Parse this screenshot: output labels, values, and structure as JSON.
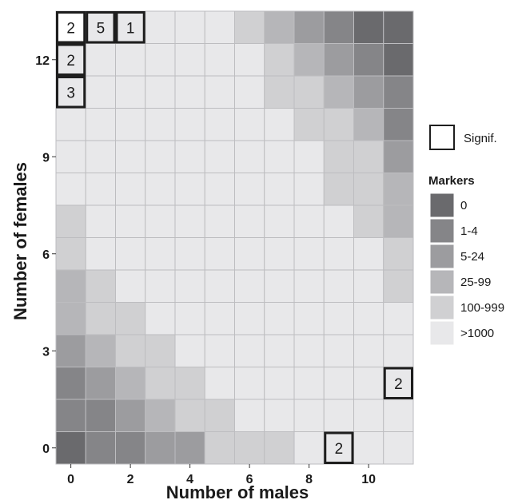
{
  "chart_data": {
    "type": "heatmap",
    "xlabel": "Number of males",
    "ylabel": "Number of females",
    "x_ticks": [
      0,
      2,
      4,
      6,
      8,
      10
    ],
    "y_ticks": [
      0,
      3,
      6,
      9,
      12
    ],
    "x_range": [
      0,
      11
    ],
    "y_range": [
      0,
      13
    ],
    "categories": [
      "0",
      "1-4",
      "5-24",
      "25-99",
      "100-999",
      ">1000"
    ],
    "colors": {
      "blank": "#ffffff",
      "0": "#6a6a6d",
      "1-4": "#858588",
      "5-24": "#9c9c9f",
      "25-99": "#b6b6b9",
      "100-999": "#d0d0d2",
      ">1000": "#e8e8ea",
      "grid": "#bdbdc0",
      "signif_border": "#1e1e1e"
    },
    "rows": [
      [
        "blank",
        ">1000",
        ">1000",
        ">1000",
        ">1000",
        ">1000",
        "100-999",
        "25-99",
        "5-24",
        "1-4",
        "0",
        "0"
      ],
      [
        ">1000",
        ">1000",
        ">1000",
        ">1000",
        ">1000",
        ">1000",
        ">1000",
        "100-999",
        "25-99",
        "5-24",
        "1-4",
        "0"
      ],
      [
        ">1000",
        ">1000",
        ">1000",
        ">1000",
        ">1000",
        ">1000",
        ">1000",
        "100-999",
        "100-999",
        "25-99",
        "5-24",
        "1-4"
      ],
      [
        ">1000",
        ">1000",
        ">1000",
        ">1000",
        ">1000",
        ">1000",
        ">1000",
        ">1000",
        "100-999",
        "100-999",
        "25-99",
        "1-4"
      ],
      [
        ">1000",
        ">1000",
        ">1000",
        ">1000",
        ">1000",
        ">1000",
        ">1000",
        ">1000",
        ">1000",
        "100-999",
        "100-999",
        "5-24"
      ],
      [
        ">1000",
        ">1000",
        ">1000",
        ">1000",
        ">1000",
        ">1000",
        ">1000",
        ">1000",
        ">1000",
        "100-999",
        "100-999",
        "25-99"
      ],
      [
        "100-999",
        ">1000",
        ">1000",
        ">1000",
        ">1000",
        ">1000",
        ">1000",
        ">1000",
        ">1000",
        ">1000",
        "100-999",
        "25-99"
      ],
      [
        "100-999",
        ">1000",
        ">1000",
        ">1000",
        ">1000",
        ">1000",
        ">1000",
        ">1000",
        ">1000",
        ">1000",
        ">1000",
        "100-999"
      ],
      [
        "25-99",
        "100-999",
        ">1000",
        ">1000",
        ">1000",
        ">1000",
        ">1000",
        ">1000",
        ">1000",
        ">1000",
        ">1000",
        "100-999"
      ],
      [
        "25-99",
        "100-999",
        "100-999",
        ">1000",
        ">1000",
        ">1000",
        ">1000",
        ">1000",
        ">1000",
        ">1000",
        ">1000",
        ">1000"
      ],
      [
        "5-24",
        "25-99",
        "100-999",
        "100-999",
        ">1000",
        ">1000",
        ">1000",
        ">1000",
        ">1000",
        ">1000",
        ">1000",
        ">1000"
      ],
      [
        "1-4",
        "5-24",
        "25-99",
        "100-999",
        "100-999",
        ">1000",
        ">1000",
        ">1000",
        ">1000",
        ">1000",
        ">1000",
        ">1000"
      ],
      [
        "1-4",
        "1-4",
        "5-24",
        "25-99",
        "100-999",
        "100-999",
        ">1000",
        ">1000",
        ">1000",
        ">1000",
        ">1000",
        ">1000"
      ],
      [
        "0",
        "1-4",
        "1-4",
        "5-24",
        "5-24",
        "100-999",
        "100-999",
        "100-999",
        ">1000",
        ">1000",
        ">1000",
        ">1000"
      ]
    ],
    "significant_cells": [
      {
        "males": 0,
        "females": 13,
        "label": "2"
      },
      {
        "males": 1,
        "females": 13,
        "label": "5"
      },
      {
        "males": 2,
        "females": 13,
        "label": "1"
      },
      {
        "males": 0,
        "females": 12,
        "label": "2"
      },
      {
        "males": 0,
        "females": 11,
        "label": "3"
      },
      {
        "males": 11,
        "females": 2,
        "label": "2"
      },
      {
        "males": 9,
        "females": 0,
        "label": "2"
      }
    ],
    "legend": {
      "signif_label": "Signif.",
      "title": "Markers",
      "position": "right"
    }
  }
}
